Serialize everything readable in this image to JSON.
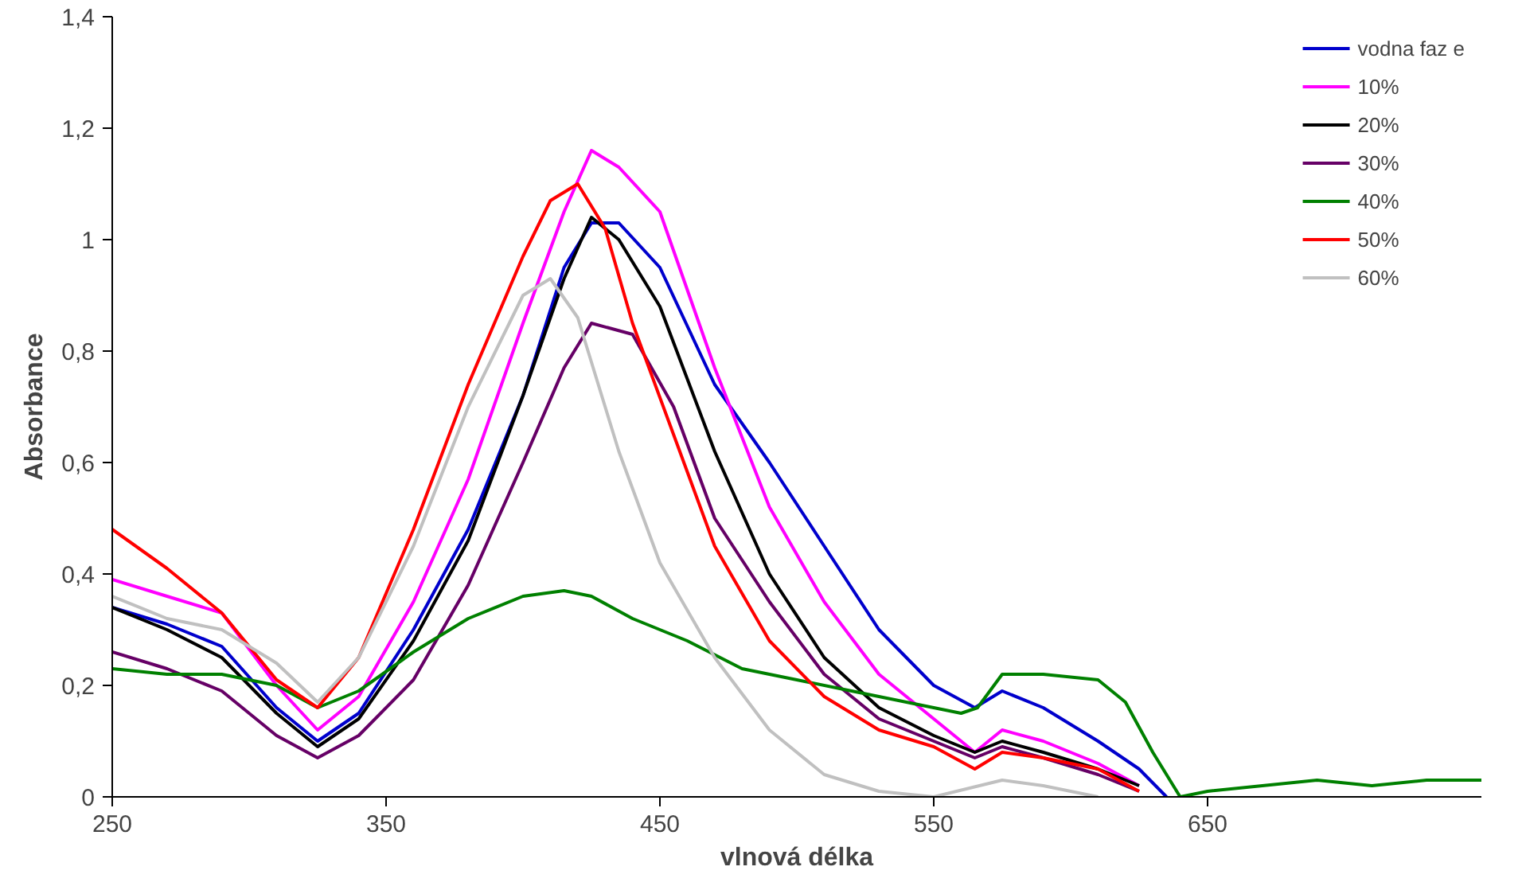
{
  "chart_data": {
    "type": "line",
    "xlabel": "vlnová délka",
    "ylabel": "Absorbance",
    "xlim": [
      250,
      750
    ],
    "xticks": [
      250,
      350,
      450,
      550,
      650
    ],
    "ylim": [
      0,
      1.4
    ],
    "yticks": [
      0,
      {
        "value": 0.2,
        "label": "0,2"
      },
      {
        "value": 0.4,
        "label": "0,4"
      },
      {
        "value": 0.6,
        "label": "0,6"
      },
      {
        "value": 0.8,
        "label": "0,8"
      },
      1,
      {
        "value": 1.2,
        "label": "1,2"
      },
      {
        "value": 1.4,
        "label": "1,4"
      }
    ],
    "grid": false,
    "legend": "top right",
    "marker": "none",
    "line_style": "solid",
    "series": [
      {
        "name": "vodna faz e",
        "color": "#0000cc",
        "x": [
          250,
          270,
          290,
          310,
          325,
          340,
          360,
          380,
          400,
          415,
          425,
          435,
          450,
          470,
          490,
          510,
          530,
          550,
          565,
          575,
          590,
          610,
          625,
          635
        ],
        "values": [
          0.34,
          0.31,
          0.27,
          0.16,
          0.1,
          0.15,
          0.3,
          0.48,
          0.72,
          0.95,
          1.03,
          1.03,
          0.95,
          0.74,
          0.6,
          0.45,
          0.3,
          0.2,
          0.16,
          0.19,
          0.16,
          0.1,
          0.05,
          0.0
        ]
      },
      {
        "name": "10%",
        "color": "#ff00ff",
        "x": [
          250,
          270,
          290,
          310,
          325,
          340,
          360,
          380,
          400,
          415,
          425,
          435,
          450,
          470,
          490,
          510,
          530,
          550,
          565,
          575,
          590,
          610,
          625
        ],
        "values": [
          0.39,
          0.36,
          0.33,
          0.2,
          0.12,
          0.18,
          0.35,
          0.57,
          0.85,
          1.05,
          1.16,
          1.13,
          1.05,
          0.77,
          0.52,
          0.35,
          0.22,
          0.14,
          0.08,
          0.12,
          0.1,
          0.06,
          0.02
        ]
      },
      {
        "name": "20%",
        "color": "#000000",
        "x": [
          250,
          270,
          290,
          310,
          325,
          340,
          360,
          380,
          400,
          415,
          425,
          435,
          450,
          470,
          490,
          510,
          530,
          550,
          565,
          575,
          590,
          610,
          625
        ],
        "values": [
          0.34,
          0.3,
          0.25,
          0.15,
          0.09,
          0.14,
          0.28,
          0.46,
          0.72,
          0.93,
          1.04,
          1.0,
          0.88,
          0.62,
          0.4,
          0.25,
          0.16,
          0.11,
          0.08,
          0.1,
          0.08,
          0.05,
          0.02
        ]
      },
      {
        "name": "30%",
        "color": "#660066",
        "x": [
          250,
          270,
          290,
          310,
          325,
          340,
          360,
          380,
          400,
          415,
          425,
          440,
          455,
          470,
          490,
          510,
          530,
          550,
          565,
          575,
          590,
          610,
          625
        ],
        "values": [
          0.26,
          0.23,
          0.19,
          0.11,
          0.07,
          0.11,
          0.21,
          0.38,
          0.6,
          0.77,
          0.85,
          0.83,
          0.7,
          0.5,
          0.35,
          0.22,
          0.14,
          0.1,
          0.07,
          0.09,
          0.07,
          0.04,
          0.01
        ]
      },
      {
        "name": "40%",
        "color": "#008000",
        "x": [
          250,
          270,
          290,
          310,
          325,
          340,
          360,
          380,
          400,
          415,
          425,
          440,
          460,
          480,
          500,
          520,
          540,
          560,
          566,
          575,
          590,
          610,
          620,
          630,
          640,
          650,
          670,
          690,
          710,
          730,
          750
        ],
        "values": [
          0.23,
          0.22,
          0.22,
          0.2,
          0.16,
          0.19,
          0.26,
          0.32,
          0.36,
          0.37,
          0.36,
          0.32,
          0.28,
          0.23,
          0.21,
          0.19,
          0.17,
          0.15,
          0.16,
          0.22,
          0.22,
          0.21,
          0.17,
          0.08,
          0.0,
          0.01,
          0.02,
          0.03,
          0.02,
          0.03,
          0.03
        ]
      },
      {
        "name": "50%",
        "color": "#ff0000",
        "x": [
          250,
          270,
          290,
          310,
          325,
          340,
          360,
          380,
          400,
          410,
          420,
          430,
          440,
          455,
          470,
          490,
          510,
          530,
          550,
          565,
          575,
          590,
          610,
          625
        ],
        "values": [
          0.48,
          0.41,
          0.33,
          0.21,
          0.16,
          0.25,
          0.48,
          0.74,
          0.97,
          1.07,
          1.1,
          1.02,
          0.85,
          0.65,
          0.45,
          0.28,
          0.18,
          0.12,
          0.09,
          0.05,
          0.08,
          0.07,
          0.05,
          0.01
        ]
      },
      {
        "name": "60%",
        "color": "#c0c0c0",
        "x": [
          250,
          270,
          290,
          310,
          325,
          340,
          360,
          380,
          400,
          410,
          420,
          435,
          450,
          470,
          490,
          510,
          530,
          550,
          575,
          590,
          610
        ],
        "values": [
          0.36,
          0.32,
          0.3,
          0.24,
          0.17,
          0.25,
          0.45,
          0.7,
          0.9,
          0.93,
          0.86,
          0.62,
          0.42,
          0.25,
          0.12,
          0.04,
          0.01,
          0.0,
          0.03,
          0.02,
          0.0
        ]
      }
    ]
  }
}
